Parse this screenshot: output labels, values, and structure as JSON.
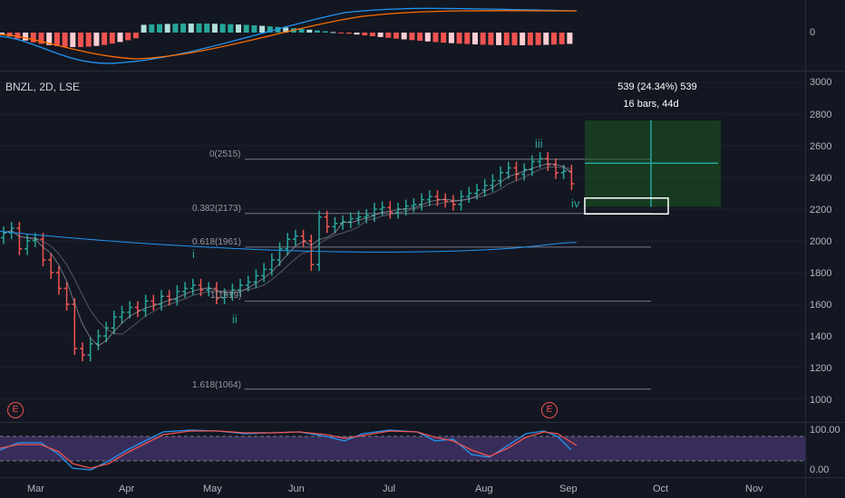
{
  "symbol": "BNZL, 2D, LSE",
  "price_axis": [
    "3000",
    "2800",
    "2600",
    "2400",
    "2200",
    "2000",
    "1800",
    "1600",
    "1400",
    "1200",
    "1000"
  ],
  "macd_axis": [
    "0"
  ],
  "rsi_axis": [
    "100.00",
    "0.00"
  ],
  "time_axis": [
    "Mar",
    "Apr",
    "May",
    "Jun",
    "Jul",
    "Aug",
    "Sep",
    "Oct",
    "Nov"
  ],
  "fib_levels": [
    {
      "label": "0(2515)",
      "price": 2515
    },
    {
      "label": "0.382(2173)",
      "price": 2173
    },
    {
      "label": "0.618(1961)",
      "price": 1961
    },
    {
      "label": "1(1619)",
      "price": 1619
    },
    {
      "label": "1.618(1064)",
      "price": 1064
    }
  ],
  "waves": [
    "i",
    "ii",
    "iii",
    "iv"
  ],
  "earnings_marker": "E",
  "measure": {
    "line1": "539 (24.34%) 539",
    "line2": "16 bars, 44d"
  },
  "colors": {
    "bg": "#131722",
    "up": "#26a69a",
    "down": "#ef5350",
    "rsi_band": "#7e57c2",
    "sma": "#5d606b",
    "sma_slow": "#2196f3",
    "measure_fill": "#1b5e20"
  }
}
